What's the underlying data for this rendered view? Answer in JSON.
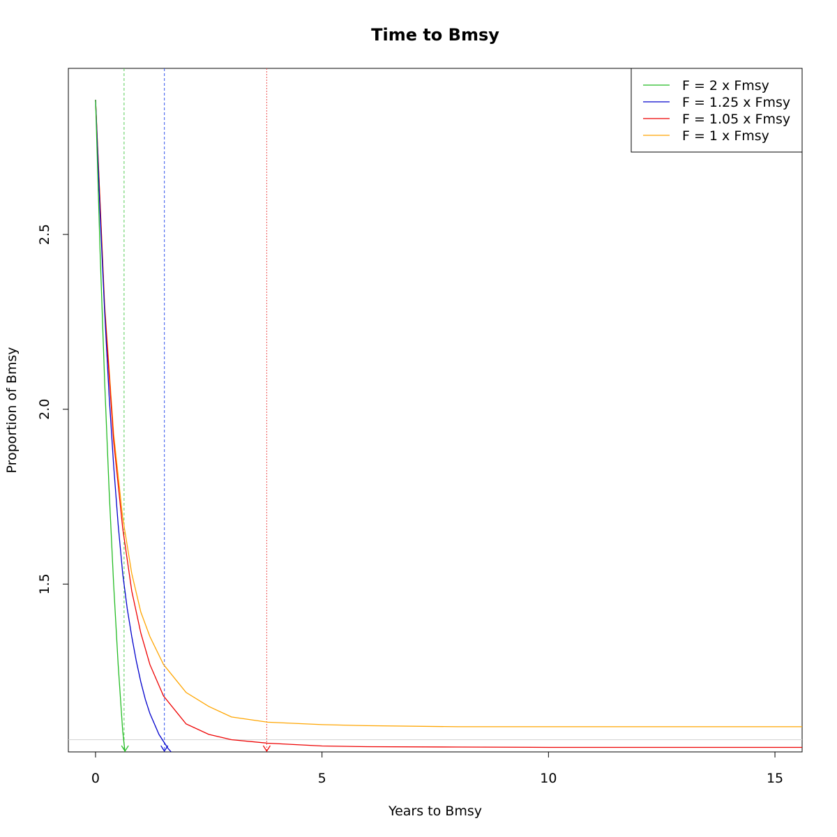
{
  "chart_data": {
    "type": "line",
    "title": "Time to Bmsy",
    "xlabel": "Years to Bmsy",
    "ylabel": "Proportion of Bmsy",
    "xlim": [
      -0.6,
      15.6
    ],
    "ylim": [
      1.02,
      2.975
    ],
    "x_ticks": [
      0,
      5,
      10,
      15
    ],
    "x_tick_labels": [
      "0",
      "5",
      "10",
      "15"
    ],
    "y_ticks": [
      1.5,
      2.0,
      2.5
    ],
    "y_tick_labels": [
      "1.5",
      "2.0",
      "2.5"
    ],
    "grid": false,
    "legend_position": "top-right",
    "reference_line": {
      "y": 1.055,
      "color": "#d3d3d3"
    },
    "series": [
      {
        "name": "F = 2 x Fmsy",
        "color": "#22bb22",
        "x": [
          0,
          0.1,
          0.2,
          0.3,
          0.4,
          0.5,
          0.6,
          0.65
        ],
        "y": [
          2.885,
          2.45,
          2.08,
          1.77,
          1.5,
          1.27,
          1.08,
          1.02
        ],
        "arrow_x": 0.65
      },
      {
        "name": "F = 1.25 x Fmsy",
        "color": "#0000cc",
        "x": [
          0,
          0.1,
          0.2,
          0.3,
          0.4,
          0.5,
          0.6,
          0.7,
          0.8,
          0.9,
          1.0,
          1.1,
          1.2,
          1.3,
          1.4,
          1.5,
          1.6,
          1.67
        ],
        "y": [
          2.885,
          2.56,
          2.28,
          2.04,
          1.84,
          1.67,
          1.53,
          1.43,
          1.35,
          1.28,
          1.22,
          1.17,
          1.13,
          1.1,
          1.07,
          1.05,
          1.03,
          1.02
        ],
        "arrow_x": 1.52
      },
      {
        "name": "F = 1.05 x Fmsy",
        "color": "#ee0000",
        "x": [
          0,
          0.2,
          0.4,
          0.6,
          0.8,
          1.0,
          1.2,
          1.5,
          2.0,
          2.5,
          3.0,
          3.8,
          5.0,
          6.0,
          8.0,
          10.0,
          12.0,
          15.6
        ],
        "y": [
          2.885,
          2.29,
          1.91,
          1.66,
          1.48,
          1.36,
          1.27,
          1.18,
          1.1,
          1.07,
          1.055,
          1.045,
          1.037,
          1.035,
          1.034,
          1.033,
          1.033,
          1.033
        ],
        "arrow_x": 3.78
      },
      {
        "name": "F = 1 x Fmsy",
        "color": "#ffa500",
        "x": [
          0,
          0.2,
          0.4,
          0.6,
          0.8,
          1.0,
          1.2,
          1.5,
          2.0,
          2.5,
          3.0,
          3.8,
          5.0,
          6.0,
          8.0,
          10.0,
          12.0,
          15.6
        ],
        "y": [
          2.885,
          2.3,
          1.93,
          1.69,
          1.53,
          1.42,
          1.35,
          1.27,
          1.19,
          1.15,
          1.12,
          1.105,
          1.098,
          1.095,
          1.092,
          1.092,
          1.092,
          1.092
        ]
      }
    ],
    "vertical_markers": [
      {
        "x": 0.63,
        "color": "#55cc55",
        "style": "dashed"
      },
      {
        "x": 1.52,
        "color": "#3355ee",
        "style": "dashed"
      },
      {
        "x": 3.78,
        "color": "#ee5555",
        "style": "dotted"
      }
    ]
  }
}
